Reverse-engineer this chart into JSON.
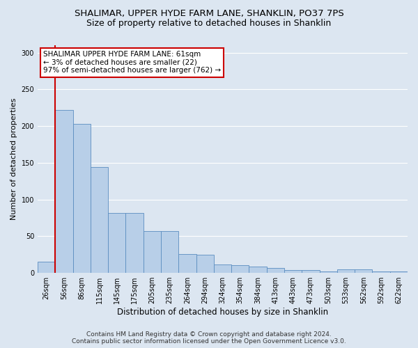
{
  "title1": "SHALIMAR, UPPER HYDE FARM LANE, SHANKLIN, PO37 7PS",
  "title2": "Size of property relative to detached houses in Shanklin",
  "xlabel": "Distribution of detached houses by size in Shanklin",
  "ylabel": "Number of detached properties",
  "footer1": "Contains HM Land Registry data © Crown copyright and database right 2024.",
  "footer2": "Contains public sector information licensed under the Open Government Licence v3.0.",
  "annotation_line1": "SHALIMAR UPPER HYDE FARM LANE: 61sqm",
  "annotation_line2": "← 3% of detached houses are smaller (22)",
  "annotation_line3": "97% of semi-detached houses are larger (762) →",
  "bar_labels": [
    "26sqm",
    "56sqm",
    "86sqm",
    "115sqm",
    "145sqm",
    "175sqm",
    "205sqm",
    "235sqm",
    "264sqm",
    "294sqm",
    "324sqm",
    "354sqm",
    "384sqm",
    "413sqm",
    "443sqm",
    "473sqm",
    "503sqm",
    "533sqm",
    "562sqm",
    "592sqm",
    "622sqm"
  ],
  "bar_values": [
    15,
    222,
    203,
    144,
    82,
    82,
    57,
    57,
    26,
    25,
    12,
    11,
    9,
    7,
    4,
    4,
    2,
    5,
    5,
    2,
    2
  ],
  "bar_color": "#b8cfe8",
  "bar_edge_color": "#5b8dc0",
  "vline_color": "#cc0000",
  "annotation_box_edge_color": "#cc0000",
  "annotation_box_face_color": "#ffffff",
  "ylim": [
    0,
    310
  ],
  "yticks": [
    0,
    50,
    100,
    150,
    200,
    250,
    300
  ],
  "background_color": "#dce6f1",
  "plot_bg_color": "#dce6f1",
  "grid_color": "#ffffff",
  "title_fontsize": 9.5,
  "subtitle_fontsize": 9,
  "tick_fontsize": 7,
  "ylabel_fontsize": 8,
  "xlabel_fontsize": 8.5,
  "annotation_fontsize": 7.5,
  "footer_fontsize": 6.5
}
